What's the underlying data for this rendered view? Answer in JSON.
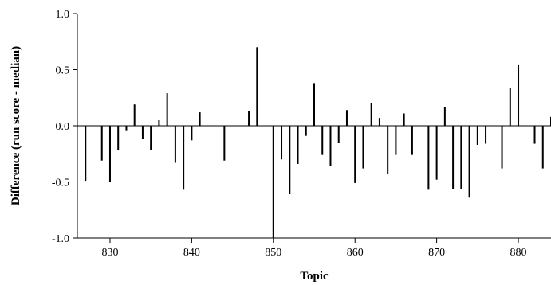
{
  "chart_data": {
    "type": "bar",
    "xlabel": "Topic",
    "ylabel": "Difference (run score - median)",
    "xlim": [
      826,
      884
    ],
    "ylim": [
      -1.0,
      1.0
    ],
    "x_ticks": [
      830,
      840,
      850,
      860,
      870,
      880
    ],
    "y_ticks": [
      -1.0,
      -0.5,
      0.0,
      0.5,
      1.0
    ],
    "y_tick_labels": [
      "-1.0",
      "-0.5",
      "0.0",
      "0.5",
      "1.0"
    ],
    "grid": false,
    "bar_color": "#000000",
    "points": [
      {
        "x": 827,
        "y": -0.49
      },
      {
        "x": 829,
        "y": -0.31
      },
      {
        "x": 830,
        "y": -0.5
      },
      {
        "x": 831,
        "y": -0.22
      },
      {
        "x": 832,
        "y": -0.04
      },
      {
        "x": 833,
        "y": 0.19
      },
      {
        "x": 834,
        "y": -0.12
      },
      {
        "x": 835,
        "y": -0.22
      },
      {
        "x": 836,
        "y": 0.05
      },
      {
        "x": 837,
        "y": 0.29
      },
      {
        "x": 838,
        "y": -0.33
      },
      {
        "x": 839,
        "y": -0.57
      },
      {
        "x": 840,
        "y": -0.13
      },
      {
        "x": 841,
        "y": 0.12
      },
      {
        "x": 844,
        "y": -0.31
      },
      {
        "x": 847,
        "y": 0.13
      },
      {
        "x": 848,
        "y": 0.7
      },
      {
        "x": 850,
        "y": -1.0
      },
      {
        "x": 851,
        "y": -0.3
      },
      {
        "x": 852,
        "y": -0.61
      },
      {
        "x": 853,
        "y": -0.34
      },
      {
        "x": 854,
        "y": -0.09
      },
      {
        "x": 855,
        "y": 0.38
      },
      {
        "x": 856,
        "y": -0.26
      },
      {
        "x": 857,
        "y": -0.36
      },
      {
        "x": 858,
        "y": -0.15
      },
      {
        "x": 859,
        "y": 0.14
      },
      {
        "x": 860,
        "y": -0.51
      },
      {
        "x": 861,
        "y": -0.38
      },
      {
        "x": 862,
        "y": 0.2
      },
      {
        "x": 863,
        "y": 0.07
      },
      {
        "x": 864,
        "y": -0.43
      },
      {
        "x": 865,
        "y": -0.26
      },
      {
        "x": 866,
        "y": 0.11
      },
      {
        "x": 867,
        "y": -0.26
      },
      {
        "x": 869,
        "y": -0.57
      },
      {
        "x": 870,
        "y": -0.48
      },
      {
        "x": 871,
        "y": 0.17
      },
      {
        "x": 872,
        "y": -0.56
      },
      {
        "x": 873,
        "y": -0.56
      },
      {
        "x": 874,
        "y": -0.64
      },
      {
        "x": 875,
        "y": -0.17
      },
      {
        "x": 876,
        "y": -0.16
      },
      {
        "x": 878,
        "y": -0.38
      },
      {
        "x": 879,
        "y": 0.34
      },
      {
        "x": 880,
        "y": 0.54
      },
      {
        "x": 882,
        "y": -0.16
      },
      {
        "x": 883,
        "y": -0.38
      },
      {
        "x": 884,
        "y": 0.08
      }
    ]
  }
}
